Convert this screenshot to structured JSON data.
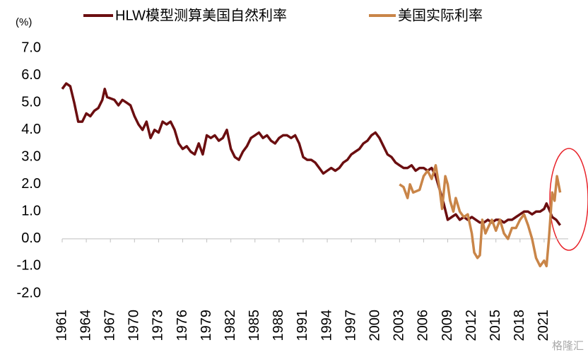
{
  "chart_data": {
    "type": "line",
    "y_unit_label": "(%)",
    "watermark": "格隆汇",
    "xlim": [
      1961,
      2024
    ],
    "xticks": [
      1961,
      1964,
      1967,
      1970,
      1973,
      1976,
      1979,
      1982,
      1985,
      1988,
      1991,
      1994,
      1997,
      2000,
      2003,
      2006,
      2009,
      2012,
      2015,
      2018,
      2021
    ],
    "ylim": [
      -2,
      7
    ],
    "yticks": [
      {
        "value": -2,
        "label": "-2.0"
      },
      {
        "value": -1,
        "label": "-1.0"
      },
      {
        "value": 0,
        "label": "0.0"
      },
      {
        "value": 1,
        "label": "1.0"
      },
      {
        "value": 2,
        "label": "2.0"
      },
      {
        "value": 3,
        "label": "3.0"
      },
      {
        "value": 4,
        "label": "4.0"
      },
      {
        "value": 5,
        "label": "5.0"
      },
      {
        "value": 6,
        "label": "6.0"
      },
      {
        "value": 7,
        "label": "7.0"
      }
    ],
    "grid": false,
    "legend": "top",
    "series": [
      {
        "name": "HLW模型测算美国自然利率",
        "color": "#6b0e10",
        "x": [
          1961,
          1961.5,
          1962,
          1962.5,
          1963,
          1963.5,
          1964,
          1964.5,
          1965,
          1965.5,
          1966,
          1966.3,
          1966.6,
          1967.5,
          1968,
          1968.5,
          1969,
          1969.5,
          1970,
          1970.5,
          1971,
          1971.5,
          1972,
          1972.5,
          1973,
          1973.5,
          1974,
          1974.5,
          1975,
          1975.5,
          1976,
          1976.5,
          1977,
          1977.5,
          1978,
          1978.5,
          1979,
          1979.5,
          1980,
          1980.5,
          1981,
          1981.5,
          1982,
          1982.5,
          1983,
          1983.5,
          1984,
          1984.5,
          1985,
          1985.5,
          1986,
          1986.5,
          1987,
          1987.5,
          1988,
          1988.5,
          1989,
          1989.5,
          1990,
          1990.5,
          1991,
          1991.5,
          1992,
          1992.5,
          1993,
          1993.5,
          1994,
          1994.5,
          1995,
          1995.5,
          1996,
          1996.5,
          1997,
          1997.5,
          1998,
          1998.5,
          1999,
          1999.5,
          2000,
          2000.5,
          2001,
          2001.5,
          2002,
          2002.5,
          2003,
          2003.5,
          2004,
          2004.5,
          2005,
          2005.5,
          2006,
          2006.5,
          2007,
          2007.5,
          2008,
          2008.5,
          2009,
          2009.5,
          2010,
          2010.5,
          2011,
          2011.5,
          2012,
          2012.5,
          2013,
          2013.5,
          2014,
          2014.5,
          2015,
          2015.5,
          2016,
          2016.5,
          2017,
          2017.5,
          2018,
          2018.5,
          2019,
          2019.5,
          2020,
          2020.5,
          2021,
          2021.3,
          2021.6,
          2022,
          2022.5,
          2023
        ],
        "values": [
          5.5,
          5.7,
          5.6,
          5.0,
          4.3,
          4.3,
          4.6,
          4.5,
          4.7,
          4.8,
          5.1,
          5.5,
          5.2,
          5.1,
          4.9,
          5.1,
          5.0,
          4.9,
          4.5,
          4.2,
          4.0,
          4.3,
          3.7,
          4.0,
          3.9,
          4.3,
          4.2,
          4.3,
          4.0,
          3.5,
          3.3,
          3.4,
          3.2,
          3.1,
          3.5,
          3.1,
          3.8,
          3.7,
          3.8,
          3.6,
          3.7,
          4.0,
          3.3,
          3.0,
          2.9,
          3.2,
          3.4,
          3.7,
          3.8,
          3.9,
          3.7,
          3.8,
          3.6,
          3.5,
          3.7,
          3.8,
          3.8,
          3.7,
          3.8,
          3.5,
          3.0,
          2.9,
          2.9,
          2.8,
          2.6,
          2.4,
          2.5,
          2.6,
          2.5,
          2.6,
          2.8,
          2.9,
          3.1,
          3.2,
          3.3,
          3.5,
          3.6,
          3.8,
          3.9,
          3.7,
          3.4,
          3.1,
          3.0,
          2.8,
          2.7,
          2.6,
          2.6,
          2.7,
          2.5,
          2.6,
          2.6,
          2.5,
          2.6,
          2.3,
          1.8,
          1.3,
          0.7,
          0.8,
          0.9,
          0.7,
          0.8,
          0.7,
          0.8,
          0.7,
          0.6,
          0.6,
          0.7,
          0.6,
          0.7,
          0.7,
          0.6,
          0.7,
          0.7,
          0.8,
          0.9,
          1.0,
          1.0,
          0.9,
          1.0,
          1.0,
          1.1,
          1.3,
          1.1,
          0.8,
          0.7,
          0.5
        ]
      },
      {
        "name": "美国实际利率",
        "color": "#c98548",
        "x": [
          2003,
          2003.5,
          2004,
          2004.3,
          2004.7,
          2005.5,
          2006,
          2006.5,
          2007,
          2007.5,
          2008,
          2008.3,
          2008.7,
          2009,
          2009.3,
          2009.7,
          2010,
          2010.5,
          2011,
          2011.5,
          2012,
          2012.3,
          2012.7,
          2013,
          2013.3,
          2013.7,
          2014,
          2014.5,
          2015,
          2015.5,
          2016,
          2016.5,
          2017,
          2017.5,
          2018,
          2018.5,
          2019,
          2019.5,
          2020,
          2020.5,
          2021,
          2021.3,
          2021.6,
          2022,
          2022.3,
          2022.6,
          2023
        ],
        "values": [
          2.0,
          1.9,
          1.5,
          2.0,
          1.7,
          1.8,
          2.3,
          2.5,
          2.2,
          2.7,
          1.8,
          1.1,
          2.3,
          2.0,
          1.4,
          1.0,
          1.5,
          1.0,
          0.8,
          0.9,
          0.2,
          -0.5,
          -0.7,
          -0.6,
          0.7,
          0.2,
          0.4,
          0.7,
          0.3,
          0.7,
          0.2,
          0.0,
          0.4,
          0.4,
          0.7,
          0.9,
          0.5,
          0.0,
          -0.7,
          -1.0,
          -0.8,
          -1.0,
          0.0,
          1.7,
          1.4,
          2.3,
          1.7
        ]
      }
    ]
  }
}
